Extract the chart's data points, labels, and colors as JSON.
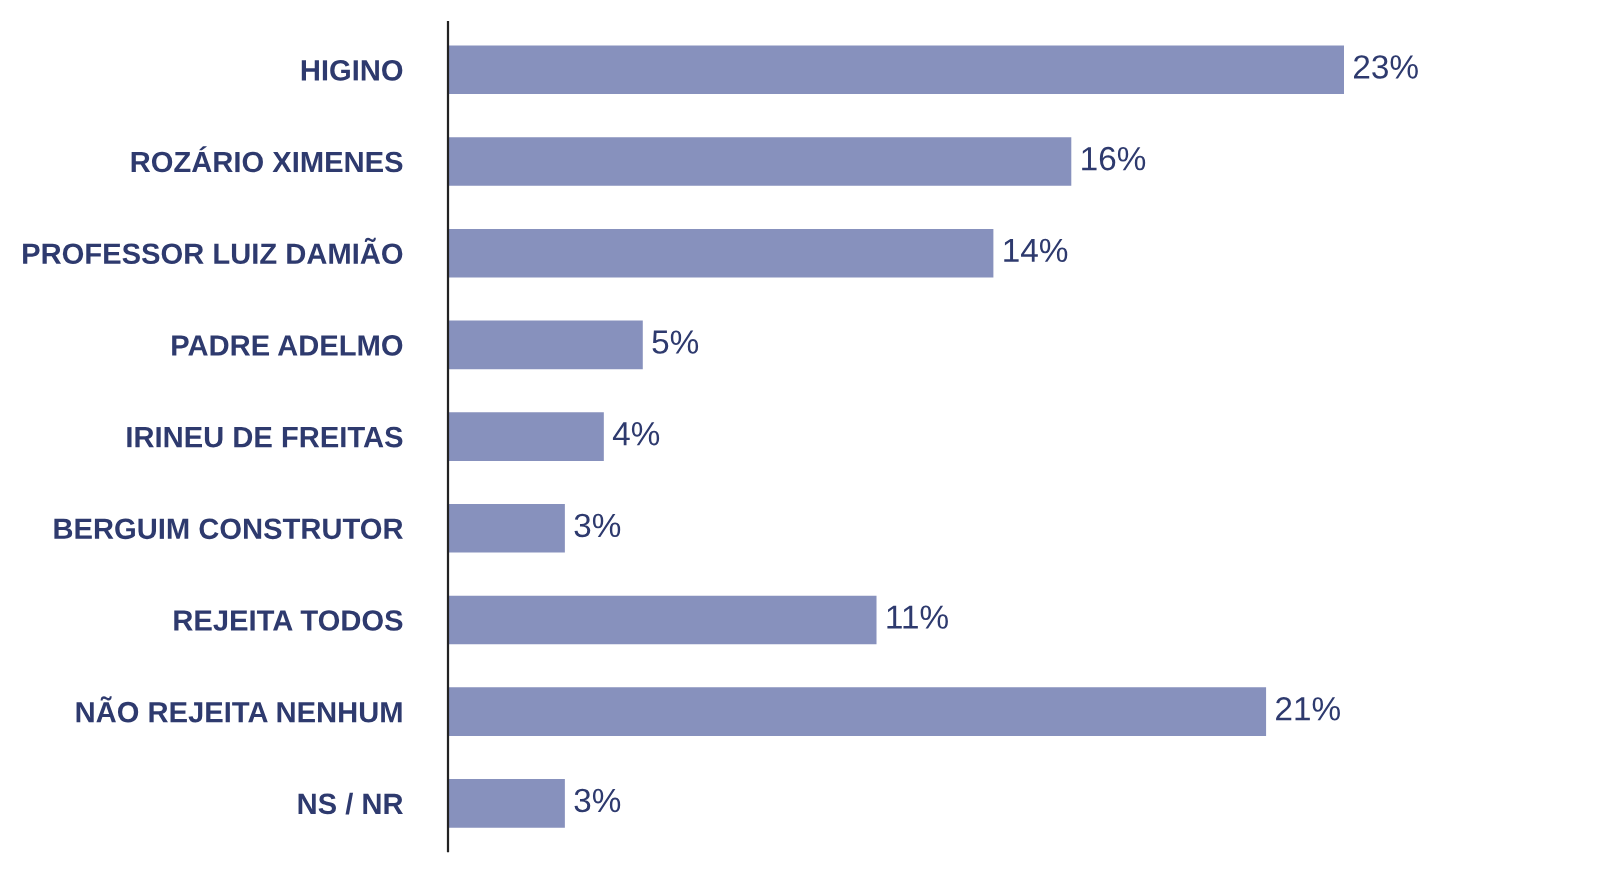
{
  "chart_data": {
    "type": "bar",
    "orientation": "horizontal",
    "categories": [
      "HIGINO",
      "ROZÁRIO XIMENES",
      "PROFESSOR LUIZ DAMIÃO",
      "PADRE ADELMO",
      "IRINEU DE FREITAS",
      "BERGUIM CONSTRUTOR",
      "REJEITA TODOS",
      "NÃO REJEITA NENHUM",
      "NS / NR"
    ],
    "values": [
      23,
      16,
      14,
      5,
      4,
      3,
      11,
      21,
      3
    ],
    "value_labels": [
      "23%",
      "16%",
      "14%",
      "5%",
      "4%",
      "3%",
      "11%",
      "21%",
      "3%"
    ],
    "color": "#8791bd",
    "tick_labels": "y",
    "grid": false,
    "legend": false
  }
}
